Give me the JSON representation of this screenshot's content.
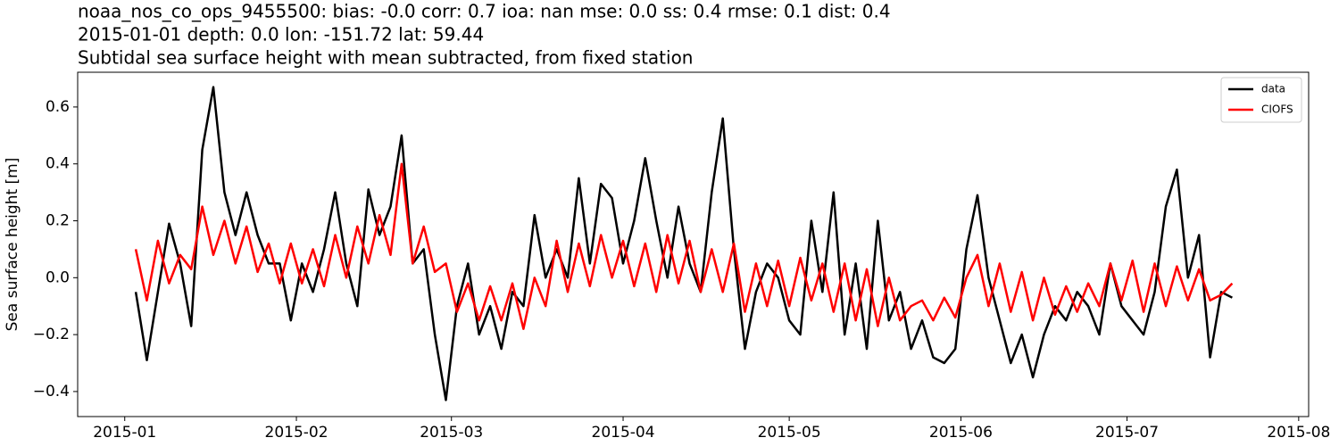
{
  "chart_data": {
    "type": "line",
    "title": "noaa_nos_co_ops_9455500: bias: -0.0  corr: 0.7  ioa: nan  mse: 0.0  ss: 0.4  rmse: 0.1  dist: 0.4",
    "subtitle": "2015-01-01 depth: 0.0 lon: -151.72 lat: 59.44",
    "subtitle2": "Subtidal sea surface height with mean subtracted, from fixed station",
    "ylabel": "Sea surface height [m]",
    "legend": "upper right",
    "xlim": [
      -8.5,
      213.8
    ],
    "ylim": [
      -0.488,
      0.722
    ],
    "xticks": [
      {
        "value": 0,
        "label": "2015-01"
      },
      {
        "value": 31,
        "label": "2015-02"
      },
      {
        "value": 59,
        "label": "2015-03"
      },
      {
        "value": 90,
        "label": "2015-04"
      },
      {
        "value": 120,
        "label": "2015-05"
      },
      {
        "value": 151,
        "label": "2015-06"
      },
      {
        "value": 181,
        "label": "2015-07"
      },
      {
        "value": 212,
        "label": "2015-08"
      }
    ],
    "yticks": [
      {
        "value": -0.4,
        "label": "−0.4"
      },
      {
        "value": -0.2,
        "label": "−0.2"
      },
      {
        "value": 0,
        "label": "0.0"
      },
      {
        "value": 0.2,
        "label": "0.2"
      },
      {
        "value": 0.4,
        "label": "0.4"
      },
      {
        "value": 0.6,
        "label": "0.6"
      }
    ],
    "x": [
      2,
      4,
      6,
      8,
      10,
      12,
      14,
      16,
      18,
      20,
      22,
      24,
      26,
      28,
      30,
      32,
      34,
      36,
      38,
      40,
      42,
      44,
      46,
      48,
      50,
      52,
      54,
      56,
      58,
      60,
      62,
      64,
      66,
      68,
      70,
      72,
      74,
      76,
      78,
      80,
      82,
      84,
      86,
      88,
      90,
      92,
      94,
      96,
      98,
      100,
      102,
      104,
      106,
      108,
      110,
      112,
      114,
      116,
      118,
      120,
      122,
      124,
      126,
      128,
      130,
      132,
      134,
      136,
      138,
      140,
      142,
      144,
      146,
      148,
      150,
      152,
      154,
      156,
      158,
      160,
      162,
      164,
      166,
      168,
      170,
      172,
      174,
      176,
      178,
      180,
      182,
      184,
      186,
      188,
      190,
      192,
      194,
      196,
      198,
      200
    ],
    "series": [
      {
        "name": "data",
        "color": "#000000",
        "values": [
          -0.05,
          -0.29,
          -0.05,
          0.19,
          0.05,
          -0.17,
          0.45,
          0.67,
          0.3,
          0.15,
          0.3,
          0.15,
          0.05,
          0.05,
          -0.15,
          0.05,
          -0.05,
          0.1,
          0.3,
          0.05,
          -0.1,
          0.31,
          0.15,
          0.25,
          0.5,
          0.05,
          0.1,
          -0.2,
          -0.43,
          -0.1,
          0.05,
          -0.2,
          -0.1,
          -0.25,
          -0.05,
          -0.1,
          0.22,
          0.0,
          0.1,
          0.0,
          0.35,
          0.05,
          0.33,
          0.28,
          0.05,
          0.2,
          0.42,
          0.2,
          0.0,
          0.25,
          0.05,
          -0.05,
          0.3,
          0.56,
          0.1,
          -0.25,
          -0.05,
          0.05,
          0.0,
          -0.15,
          -0.2,
          0.2,
          -0.05,
          0.3,
          -0.2,
          0.05,
          -0.25,
          0.2,
          -0.15,
          -0.05,
          -0.25,
          -0.15,
          -0.28,
          -0.3,
          -0.25,
          0.1,
          0.29,
          0.0,
          -0.15,
          -0.3,
          -0.2,
          -0.35,
          -0.2,
          -0.1,
          -0.15,
          -0.05,
          -0.1,
          -0.2,
          0.05,
          -0.1,
          -0.15,
          -0.2,
          -0.05,
          0.25,
          0.38,
          0.0,
          0.15,
          -0.28,
          -0.05,
          -0.07
        ]
      },
      {
        "name": "CIOFS",
        "color": "#ff0000",
        "values": [
          0.1,
          -0.08,
          0.13,
          -0.02,
          0.08,
          0.03,
          0.25,
          0.08,
          0.2,
          0.05,
          0.18,
          0.02,
          0.12,
          -0.02,
          0.12,
          -0.02,
          0.1,
          -0.03,
          0.15,
          0.0,
          0.18,
          0.05,
          0.22,
          0.08,
          0.4,
          0.05,
          0.18,
          0.02,
          0.05,
          -0.12,
          -0.02,
          -0.15,
          -0.03,
          -0.15,
          -0.02,
          -0.18,
          0.0,
          -0.1,
          0.13,
          -0.05,
          0.12,
          -0.03,
          0.15,
          0.0,
          0.13,
          -0.03,
          0.12,
          -0.05,
          0.15,
          -0.02,
          0.13,
          -0.05,
          0.1,
          -0.05,
          0.12,
          -0.12,
          0.05,
          -0.1,
          0.06,
          -0.1,
          0.07,
          -0.08,
          0.05,
          -0.12,
          0.05,
          -0.15,
          0.03,
          -0.17,
          0.0,
          -0.15,
          -0.1,
          -0.08,
          -0.15,
          -0.07,
          -0.14,
          0.0,
          0.08,
          -0.1,
          0.05,
          -0.12,
          0.02,
          -0.15,
          0.0,
          -0.13,
          -0.03,
          -0.12,
          -0.02,
          -0.1,
          0.05,
          -0.08,
          0.06,
          -0.12,
          0.05,
          -0.1,
          0.04,
          -0.08,
          0.03,
          -0.08,
          -0.06,
          -0.02
        ]
      }
    ]
  }
}
